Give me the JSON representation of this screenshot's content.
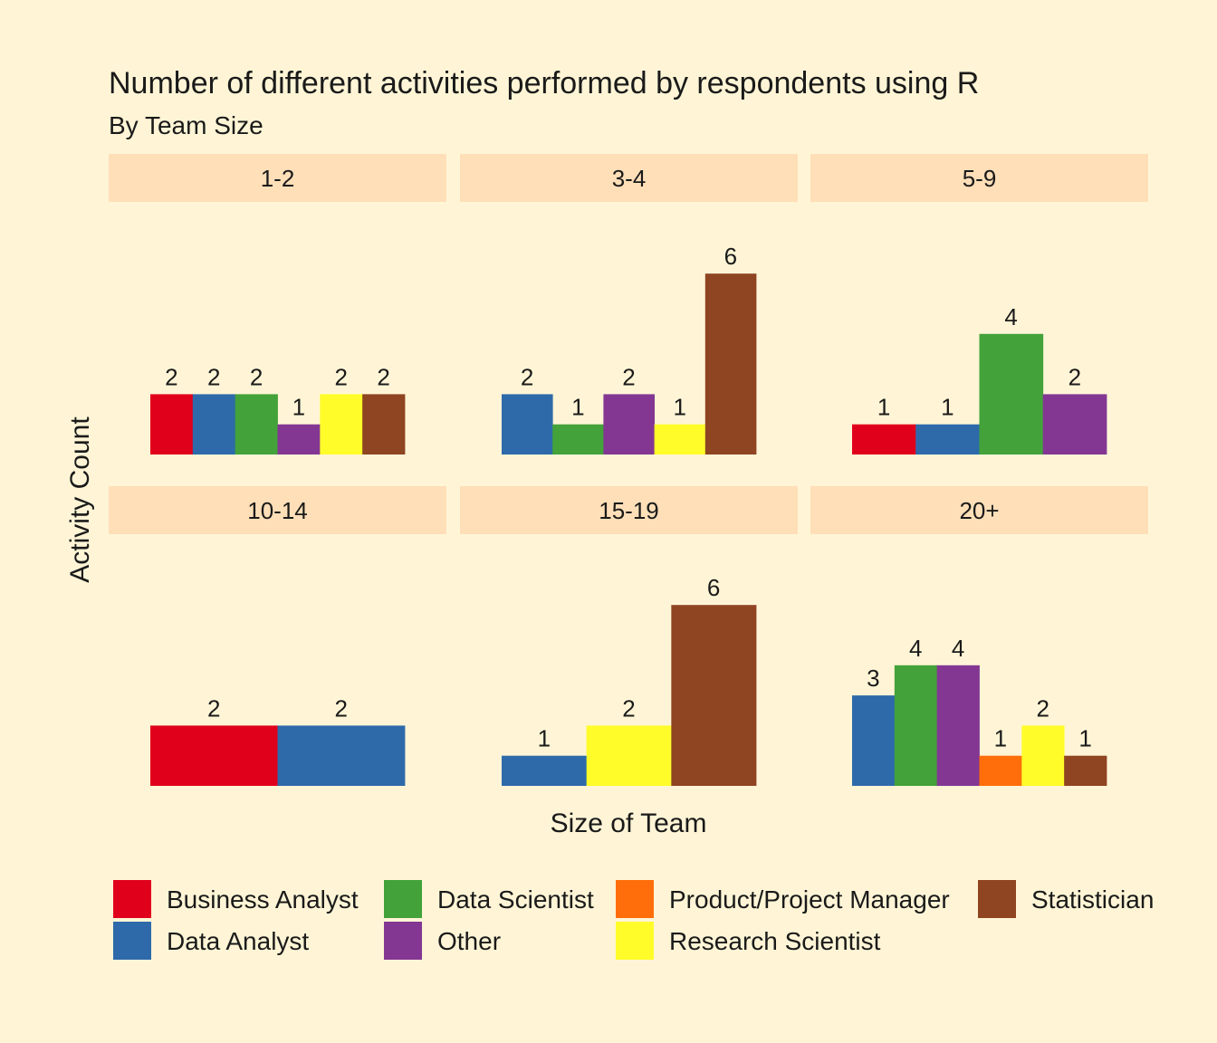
{
  "chart_data": {
    "type": "bar",
    "title": "Number of different activities performed by respondents using R",
    "subtitle": "By Team Size",
    "xlabel": "Size of Team",
    "ylabel": "Activity Count",
    "ylim": [
      0,
      6
    ],
    "grid": false,
    "legend_position": "bottom",
    "categories": [
      "Business Analyst",
      "Data Analyst",
      "Data Scientist",
      "Other",
      "Product/Project Manager",
      "Research Scientist",
      "Statistician"
    ],
    "facets": [
      {
        "label": "1-2",
        "bars": [
          {
            "category": "Business Analyst",
            "value": 2
          },
          {
            "category": "Data Analyst",
            "value": 2
          },
          {
            "category": "Data Scientist",
            "value": 2
          },
          {
            "category": "Other",
            "value": 1
          },
          {
            "category": "Research Scientist",
            "value": 2
          },
          {
            "category": "Statistician",
            "value": 2
          }
        ]
      },
      {
        "label": "3-4",
        "bars": [
          {
            "category": "Data Analyst",
            "value": 2
          },
          {
            "category": "Data Scientist",
            "value": 1
          },
          {
            "category": "Other",
            "value": 2
          },
          {
            "category": "Research Scientist",
            "value": 1
          },
          {
            "category": "Statistician",
            "value": 6
          }
        ]
      },
      {
        "label": "5-9",
        "bars": [
          {
            "category": "Business Analyst",
            "value": 1
          },
          {
            "category": "Data Analyst",
            "value": 1
          },
          {
            "category": "Data Scientist",
            "value": 4
          },
          {
            "category": "Other",
            "value": 2
          }
        ]
      },
      {
        "label": "10-14",
        "bars": [
          {
            "category": "Business Analyst",
            "value": 2
          },
          {
            "category": "Data Analyst",
            "value": 2
          }
        ]
      },
      {
        "label": "15-19",
        "bars": [
          {
            "category": "Data Analyst",
            "value": 1
          },
          {
            "category": "Research Scientist",
            "value": 2
          },
          {
            "category": "Statistician",
            "value": 6
          }
        ]
      },
      {
        "label": "20+",
        "bars": [
          {
            "category": "Data Analyst",
            "value": 3
          },
          {
            "category": "Data Scientist",
            "value": 4
          },
          {
            "category": "Other",
            "value": 4
          },
          {
            "category": "Product/Project Manager",
            "value": 1
          },
          {
            "category": "Research Scientist",
            "value": 2
          },
          {
            "category": "Statistician",
            "value": 1
          }
        ]
      }
    ],
    "legend": [
      {
        "name": "Business Analyst",
        "color": "#E0001C"
      },
      {
        "name": "Data Analyst",
        "color": "#2E6AAA"
      },
      {
        "name": "Data Scientist",
        "color": "#43A23A"
      },
      {
        "name": "Other",
        "color": "#833793"
      },
      {
        "name": "Product/Project Manager",
        "color": "#FF6E0A"
      },
      {
        "name": "Research Scientist",
        "color": "#FFFC2A"
      },
      {
        "name": "Statistician",
        "color": "#8F4422"
      }
    ],
    "colors": {
      "background": "#FFF5D6",
      "strip": "#FFDFB8"
    }
  }
}
